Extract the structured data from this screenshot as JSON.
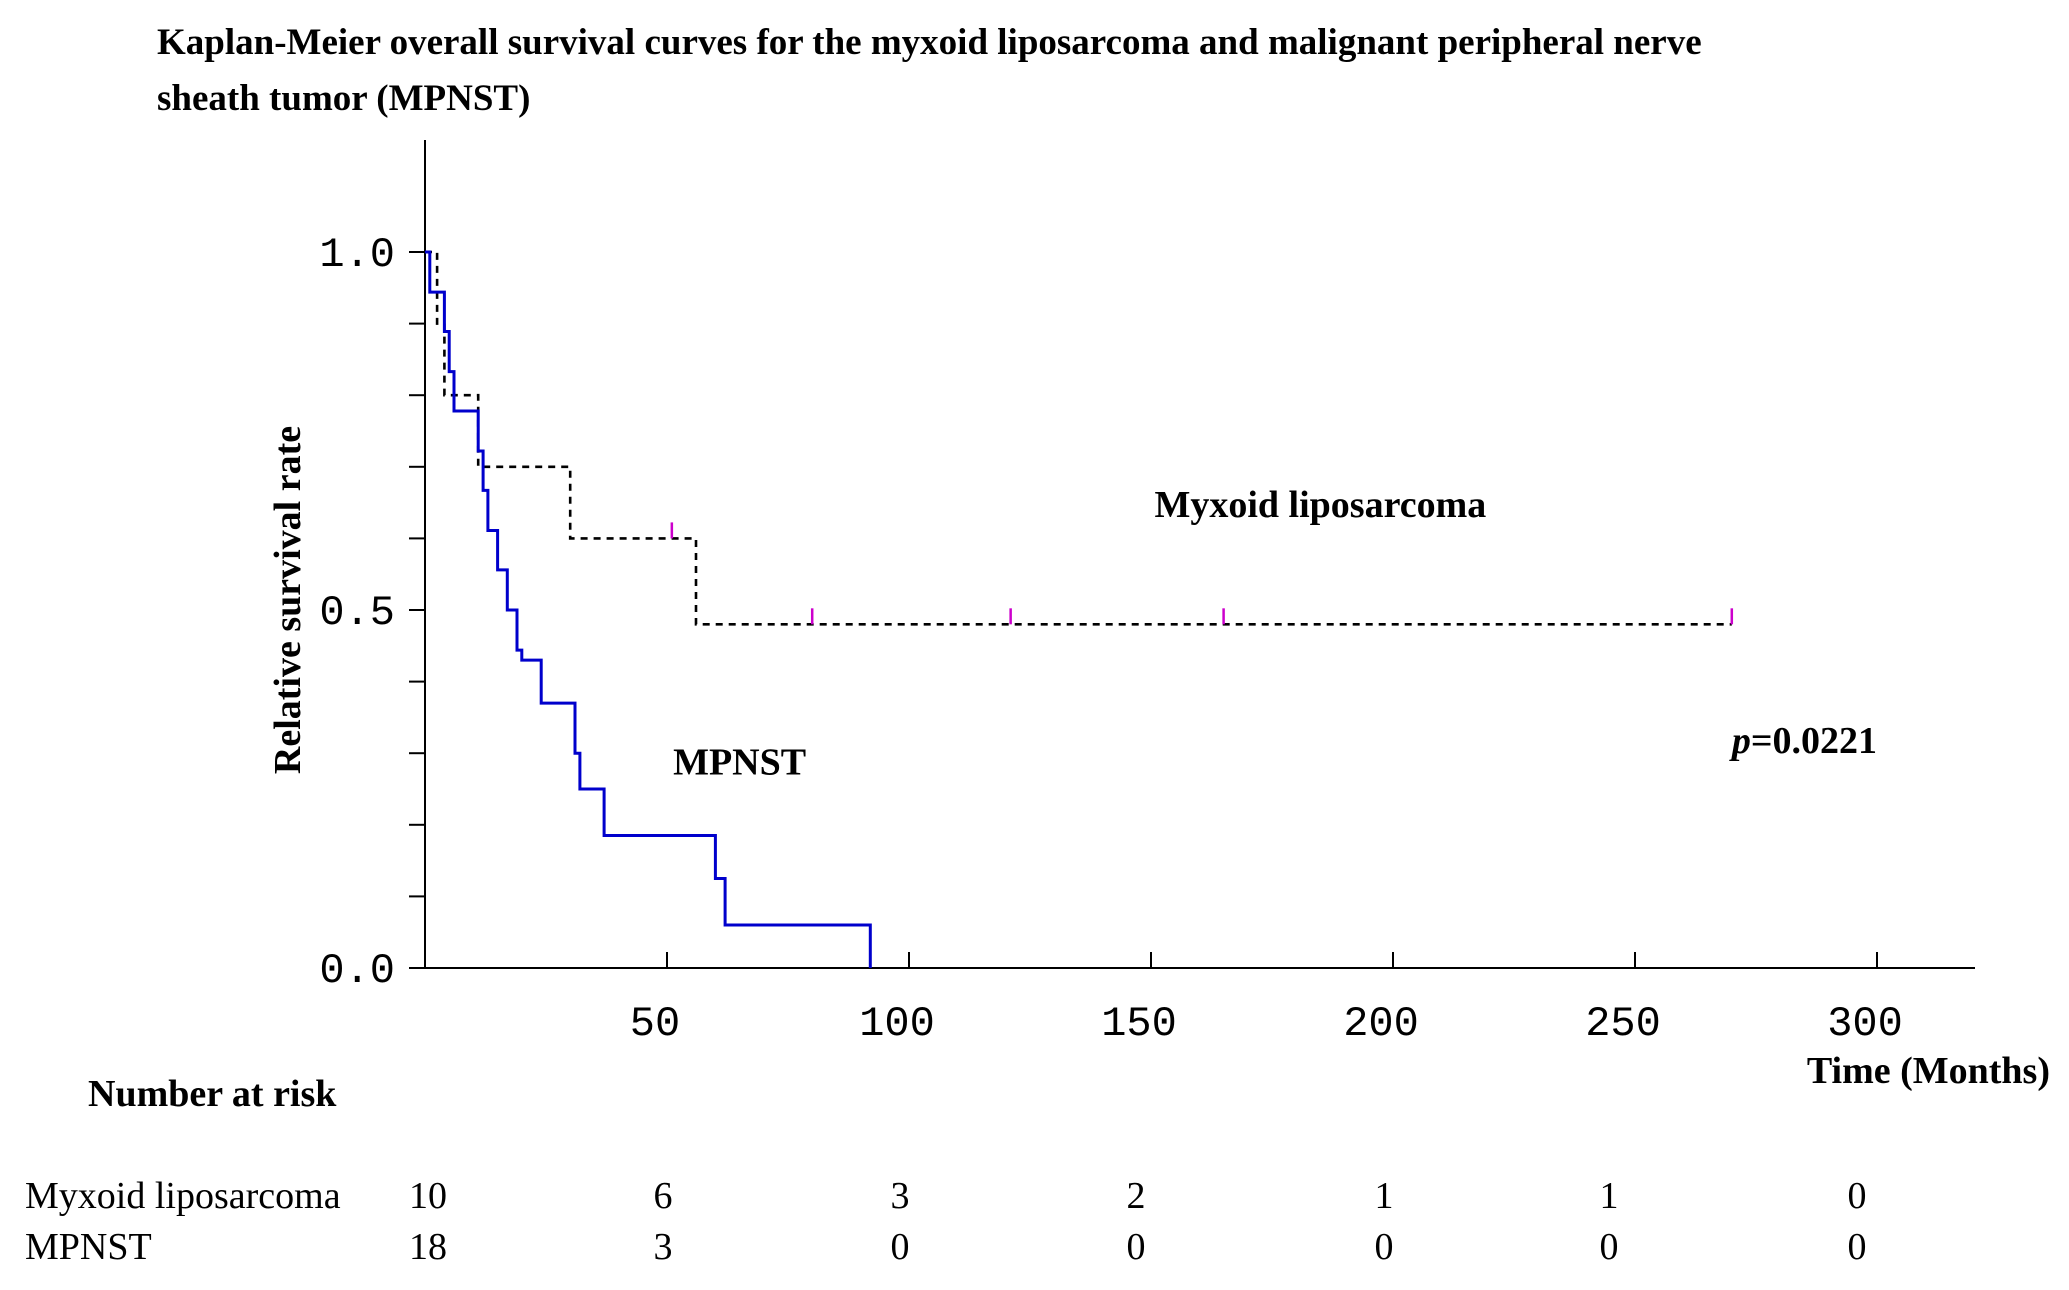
{
  "chart_data": {
    "type": "line",
    "subtype": "kaplan-meier-step",
    "title": "Kaplan-Meier overall survival curves for the myxoid liposarcoma and malignant peripheral nerve sheath tumor (MPNST)",
    "title_lines": [
      "Kaplan-Meier overall survival curves for the myxoid liposarcoma and malignant peripheral nerve",
      "sheath tumor (MPNST)"
    ],
    "xlabel": "Time (Months)",
    "ylabel": "Relative survival rate",
    "xlim": [
      0,
      325
    ],
    "ylim": [
      0,
      1.15
    ],
    "x_ticks": [
      50,
      100,
      150,
      200,
      250,
      300
    ],
    "y_ticks": [
      0.0,
      0.1,
      0.2,
      0.3,
      0.4,
      0.5,
      0.6,
      0.7,
      0.8,
      0.9,
      1.0
    ],
    "y_tick_labels": [
      {
        "value": 0.0,
        "label": "0.0"
      },
      {
        "value": 0.5,
        "label": "0.5"
      },
      {
        "value": 1.0,
        "label": "1.0"
      }
    ],
    "grid": false,
    "series": [
      {
        "name": "Myxoid liposarcoma",
        "color": "#000000",
        "line_style": "dashed",
        "steps": [
          [
            0,
            1.0
          ],
          [
            2.5,
            1.0
          ],
          [
            2.5,
            0.9
          ],
          [
            4,
            0.9
          ],
          [
            4,
            0.8
          ],
          [
            11,
            0.8
          ],
          [
            11,
            0.7
          ],
          [
            30,
            0.7
          ],
          [
            30,
            0.6
          ],
          [
            56,
            0.6
          ],
          [
            56,
            0.48
          ],
          [
            270,
            0.48
          ]
        ],
        "censored": [
          [
            51,
            0.6
          ],
          [
            80,
            0.48
          ],
          [
            121,
            0.48
          ],
          [
            165,
            0.48
          ],
          [
            270,
            0.48
          ]
        ],
        "censor_color": "#cc00cc"
      },
      {
        "name": "MPNST",
        "color": "#0000cc",
        "line_style": "solid",
        "steps": [
          [
            0,
            1.0
          ],
          [
            1,
            1.0
          ],
          [
            1,
            0.944
          ],
          [
            4,
            0.944
          ],
          [
            4,
            0.889
          ],
          [
            5,
            0.889
          ],
          [
            5,
            0.833
          ],
          [
            6,
            0.833
          ],
          [
            6,
            0.778
          ],
          [
            11,
            0.778
          ],
          [
            11,
            0.722
          ],
          [
            12,
            0.722
          ],
          [
            12,
            0.667
          ],
          [
            13,
            0.667
          ],
          [
            13,
            0.611
          ],
          [
            15,
            0.611
          ],
          [
            15,
            0.556
          ],
          [
            17,
            0.556
          ],
          [
            17,
            0.5
          ],
          [
            19,
            0.5
          ],
          [
            19,
            0.444
          ],
          [
            20,
            0.444
          ],
          [
            20,
            0.43
          ],
          [
            24,
            0.43
          ],
          [
            24,
            0.37
          ],
          [
            31,
            0.37
          ],
          [
            31,
            0.3
          ],
          [
            32,
            0.3
          ],
          [
            32,
            0.25
          ],
          [
            37,
            0.25
          ],
          [
            37,
            0.185
          ],
          [
            60,
            0.185
          ],
          [
            60,
            0.125
          ],
          [
            62,
            0.125
          ],
          [
            62,
            0.06
          ],
          [
            92,
            0.06
          ],
          [
            92,
            0.0
          ]
        ]
      }
    ],
    "annotations": [
      {
        "text": "Myxoid liposarcoma",
        "x": 185,
        "y": 0.63
      },
      {
        "text": "MPNST",
        "x": 65,
        "y": 0.27
      },
      {
        "p_prefix": "p",
        "text": "=0.0221",
        "x": 285,
        "y": 0.3
      }
    ],
    "risk_table": {
      "title": "Number at risk",
      "times": [
        0,
        50,
        100,
        150,
        200,
        250,
        300
      ],
      "rows": [
        {
          "label": "Myxoid liposarcoma",
          "values": [
            "10",
            "6",
            "3",
            "2",
            "1",
            "1",
            "0"
          ]
        },
        {
          "label": "MPNST",
          "values": [
            "18",
            "3",
            "0",
            "0",
            "0",
            "0",
            "0"
          ]
        }
      ]
    }
  }
}
